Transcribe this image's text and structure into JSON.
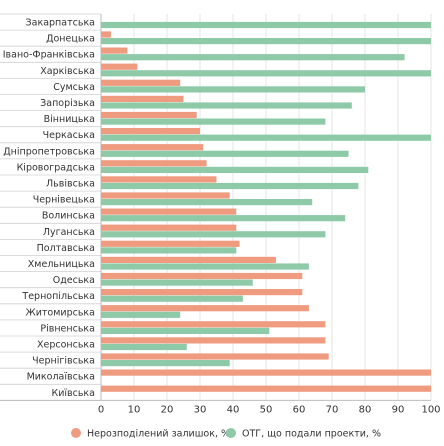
{
  "chart_data": {
    "type": "bar",
    "orientation": "horizontal",
    "categories": [
      "Закарпатська",
      "Донецька",
      "Івано-Франківська",
      "Харківська",
      "Сумська",
      "Запорізька",
      "Вінницька",
      "Черкаська",
      "Дніпропетровська",
      "Кіровоградська",
      "Львівська",
      "Чернівецька",
      "Волинська",
      "Луганська",
      "Полтавська",
      "Хмельницька",
      "Одеська",
      "Тернопільська",
      "Житомирська",
      "Рівненська",
      "Херсонська",
      "Чернігівська",
      "Миколаївська",
      "Київська"
    ],
    "series": [
      {
        "name": "Нерозподілений залишок, %",
        "color": "#ef9b80",
        "values": [
          0,
          3,
          8,
          11,
          24,
          25,
          29,
          30,
          31,
          32,
          35,
          39,
          41,
          41,
          42,
          53,
          61,
          61,
          63,
          68,
          68,
          69,
          100,
          100
        ]
      },
      {
        "name": "ОТГ, що подали проекти, %",
        "color": "#8ecaa8",
        "values": [
          100,
          100,
          92,
          100,
          80,
          76,
          68,
          100,
          75,
          81,
          78,
          64,
          74,
          68,
          41,
          63,
          46,
          43,
          24,
          51,
          26,
          39,
          0,
          0
        ]
      }
    ],
    "xlim": [
      0,
      100
    ],
    "xticks": [
      0,
      10,
      20,
      30,
      40,
      50,
      60,
      70,
      80,
      90,
      100
    ],
    "grid": true,
    "legend_position": "bottom"
  }
}
